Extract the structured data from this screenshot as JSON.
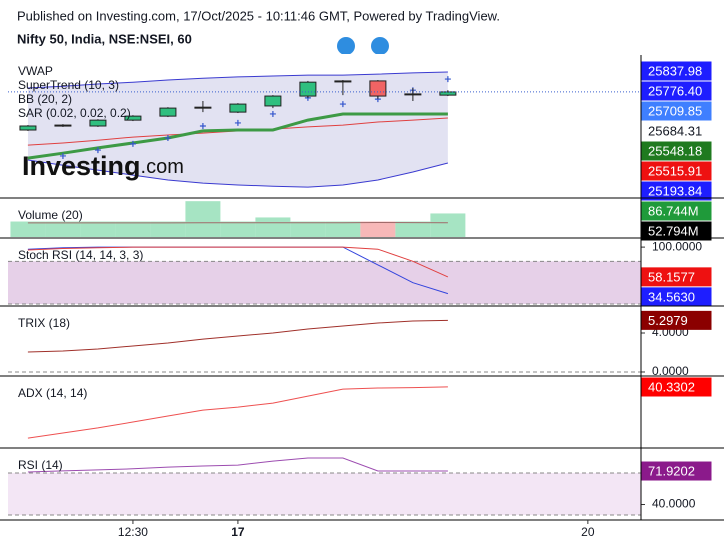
{
  "chart_data": [
    {
      "type": "candlestick",
      "subtitle": "Published on Investing.com, 17/Oct/2025 - 10:11:46 GMT, Powered by TradingView.",
      "title": "Nifty 50, India, NSE:NSEI, 60",
      "watermark": [
        "Investing",
        ".com"
      ],
      "legend": [
        "VWAP",
        "SuperTrend (10, 3)",
        "BB (20, 2)",
        "SAR (0.02, 0.02, 0.2)"
      ],
      "ylim": [
        25436,
        25896
      ],
      "open": [
        25653,
        25666,
        25666,
        25685,
        25698,
        25724,
        25711,
        25731,
        25763,
        25812,
        25812,
        25770,
        25766
      ],
      "high": [
        25669,
        25672,
        25688,
        25701,
        25727,
        25747,
        25740,
        25766,
        25812,
        25815,
        25815,
        25789,
        25782
      ],
      "low": [
        25650,
        25663,
        25663,
        25682,
        25695,
        25711,
        25708,
        25724,
        25757,
        25766,
        25754,
        25747,
        25763
      ],
      "close": [
        25666,
        25669,
        25685,
        25698,
        25724,
        25727,
        25737,
        25763,
        25808,
        25812,
        25763,
        25770,
        25776.4
      ],
      "up_color": "#2fbf7f",
      "down_color": "#f06464",
      "price_line": true,
      "price_line_color": "#3a5fcd",
      "series": [
        {
          "style": "range",
          "color": "#3a3ad0",
          "fill": "#e2e2f2",
          "upper": [
            25789,
            25795,
            25802,
            25808,
            25815,
            25821,
            25825,
            25828,
            25831,
            25831,
            25834,
            25838,
            25841
          ],
          "lower": [
            25556,
            25539,
            25523,
            25507,
            25491,
            25481,
            25475,
            25471,
            25468,
            25475,
            25491,
            25517,
            25546
          ]
        },
        {
          "style": "line",
          "color": "#e04040",
          "width": 1,
          "values": [
            25604,
            25611,
            25620,
            25630,
            25637,
            25643,
            25650,
            25656,
            25663,
            25669,
            25679,
            25685,
            25692
          ]
        },
        {
          "style": "line",
          "color": "#3d9a45",
          "width": 3,
          "values": [
            25562,
            25578,
            25595,
            25611,
            25627,
            25650,
            25653,
            25653,
            25685,
            25705,
            25705,
            25705,
            25705
          ]
        },
        {
          "style": "scatter",
          "color": "#3355cc",
          "values": [
            null,
            25569,
            25588,
            25608,
            25627,
            25666,
            25676,
            25705,
            25757,
            25737,
            25753,
            25782,
            25818
          ]
        }
      ],
      "axis_labels": [
        {
          "value": 25837.98,
          "label": "25837.98",
          "color": "#1e1eff"
        },
        {
          "value": 25776.4,
          "label": "25776.40",
          "color": "#1e1eff"
        },
        {
          "value": 25709.85,
          "label": "25709.85",
          "color": "#3f7fff"
        },
        {
          "value": 25684.31,
          "label": "25684.31",
          "color": "#ffffff",
          "text_color": "#131722"
        },
        {
          "value": 25548.18,
          "label": "25548.18",
          "color": "#1f7a1f"
        },
        {
          "value": 25515.91,
          "label": "25515.91",
          "color": "#ee1111"
        },
        {
          "value": 25193.84,
          "label": "25193.84",
          "color": "#1e1eff"
        }
      ]
    },
    {
      "type": "bar",
      "legend": [
        "Volume (20)"
      ],
      "ylim": [
        0,
        140
      ],
      "series": [
        {
          "style": "bar",
          "values": [
            57,
            57,
            57,
            57,
            57,
            132,
            57,
            72,
            57,
            57,
            57,
            57,
            86.744
          ],
          "colors": [
            "#a6e4c3",
            "#a6e4c3",
            "#a6e4c3",
            "#a6e4c3",
            "#a6e4c3",
            "#a6e4c3",
            "#a6e4c3",
            "#a6e4c3",
            "#a6e4c3",
            "#a6e4c3",
            "#f7b8b8",
            "#a6e4c3",
            "#a6e4c3"
          ]
        },
        {
          "style": "line",
          "color": "#a06a6a",
          "width": 1,
          "values": [
            52,
            52,
            52,
            52,
            52,
            52.5,
            52.5,
            52.8,
            52.8,
            52.8,
            53.5,
            53,
            52.794
          ]
        }
      ],
      "axis_labels": [
        {
          "value": 86.744,
          "label": "86.744M",
          "color": "#1f9a3a"
        },
        {
          "value": 52.794,
          "label": "52.794M",
          "color": "#000000"
        }
      ]
    },
    {
      "type": "line",
      "legend": [
        "Stoch RSI (14, 14, 3, 3)"
      ],
      "ylim": [
        18.6,
        111.4
      ],
      "band": [
        20,
        80
      ],
      "band_color": "#e6d0e8",
      "series": [
        {
          "style": "line",
          "color": "#3344dd",
          "width": 1,
          "values": [
            97,
            99,
            100,
            100,
            100,
            100,
            100,
            100,
            100,
            100,
            75,
            50,
            34.563
          ]
        },
        {
          "style": "line",
          "color": "#e04040",
          "width": 1,
          "values": [
            96,
            98,
            99,
            100,
            100,
            100,
            100,
            100,
            100,
            100,
            97,
            80,
            58.1577
          ]
        }
      ],
      "yticks": [
        {
          "value": 100,
          "label": "100.0000"
        }
      ],
      "axis_labels": [
        {
          "value": 58.1577,
          "label": "58.1577",
          "color": "#ee1111"
        },
        {
          "value": 34.563,
          "label": "34.5630",
          "color": "#1e1eff"
        }
      ]
    },
    {
      "type": "line",
      "legend": [
        "TRIX (18)"
      ],
      "ylim": [
        -0.31,
        6.67
      ],
      "zero_line": 0,
      "series": [
        {
          "style": "line",
          "color": "#a0302a",
          "width": 1,
          "values": [
            2.05,
            2.15,
            2.36,
            2.67,
            2.97,
            3.38,
            3.69,
            4.0,
            4.41,
            4.72,
            5.03,
            5.23,
            5.2979
          ]
        }
      ],
      "yticks": [
        {
          "value": 4,
          "label": "4.0000"
        },
        {
          "value": 0,
          "label": "0.0000"
        }
      ],
      "axis_labels": [
        {
          "value": 5.2979,
          "label": "5.2979",
          "color": "#8b0000"
        }
      ]
    },
    {
      "type": "line",
      "legend": [
        "ADX (14, 14)"
      ],
      "ylim": [
        0,
        47
      ],
      "series": [
        {
          "style": "line",
          "color": "#ee5050",
          "width": 1,
          "values": [
            6,
            9.4,
            12.8,
            16.8,
            20.8,
            24.8,
            26.8,
            29.5,
            34.2,
            38.9,
            39.6,
            39.9,
            40.3302
          ]
        }
      ],
      "axis_labels": [
        {
          "value": 40.3302,
          "label": "40.3302",
          "color": "#ff0000"
        }
      ]
    },
    {
      "type": "line",
      "legend": [
        "RSI (14)"
      ],
      "ylim": [
        26.2,
        92.9
      ],
      "band": [
        30,
        70
      ],
      "band_color": "#f3e6f5",
      "series": [
        {
          "style": "line",
          "color": "#9c4cb0",
          "width": 1,
          "values": [
            71,
            72,
            73,
            74,
            75.7,
            76.7,
            77.6,
            81.4,
            84.3,
            84.3,
            71.9,
            71.9,
            71.9202
          ]
        }
      ],
      "yticks": [
        {
          "value": 40,
          "label": "40.0000"
        }
      ],
      "axis_labels": [
        {
          "value": 71.9202,
          "label": "71.9202",
          "color": "#8b1a8b"
        }
      ],
      "xlim": [
        -0.57,
        17.49
      ],
      "xticks": [
        {
          "value": 3,
          "label": "12:30"
        },
        {
          "value": 6,
          "label": "17",
          "bold": true
        },
        {
          "value": 16,
          "label": "20"
        }
      ]
    }
  ]
}
